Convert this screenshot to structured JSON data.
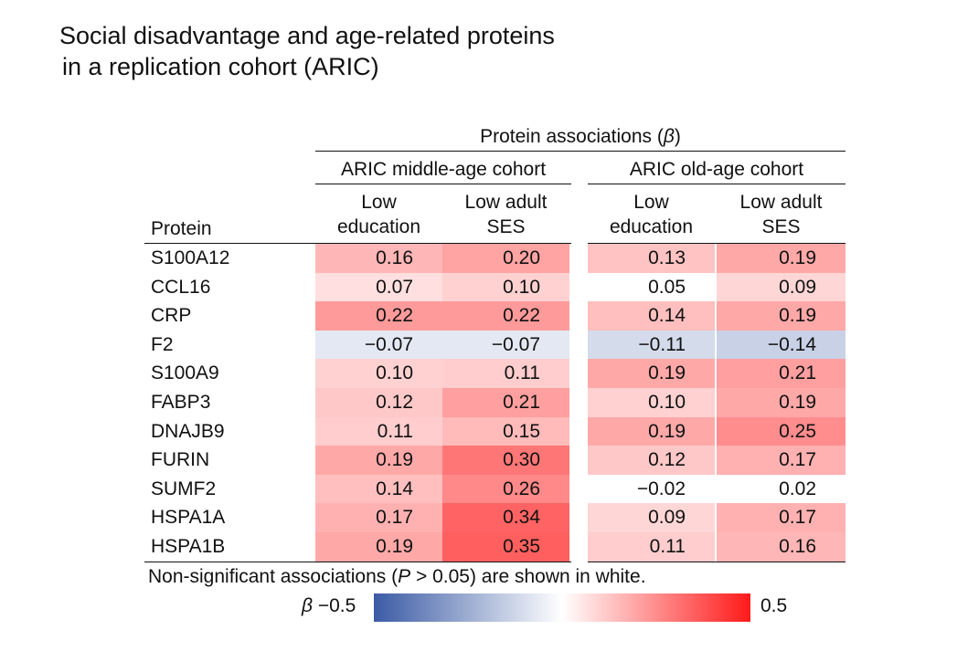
{
  "title": {
    "line1": "Social disadvantage and age-related proteins",
    "line2": "in a replication cohort (ARIC)"
  },
  "header": {
    "top": "Protein associations (",
    "beta_symbol": "β",
    "top_close": ")",
    "cohort_middle": "ARIC middle-age cohort",
    "cohort_old": "ARIC old-age cohort",
    "col_low_education_l1": "Low",
    "col_low_education_l2": "education",
    "col_low_ses_l1": "Low adult",
    "col_low_ses_l2": "SES",
    "protein": "Protein"
  },
  "chart_data": {
    "type": "heatmap",
    "title": "Social disadvantage and age-related proteins in a replication cohort (ARIC)",
    "row_header": "Protein",
    "column_groups": [
      "ARIC middle-age cohort",
      "ARIC old-age cohort"
    ],
    "columns": [
      "Low education",
      "Low adult SES",
      "Low education",
      "Low adult SES"
    ],
    "rows": [
      {
        "protein": "S100A12",
        "values": [
          "0.16",
          "0.20",
          "0.13",
          "0.19"
        ],
        "significant": [
          true,
          true,
          true,
          true
        ]
      },
      {
        "protein": "CCL16",
        "values": [
          "0.07",
          "0.10",
          "0.05",
          "0.09"
        ],
        "significant": [
          true,
          true,
          false,
          true
        ]
      },
      {
        "protein": "CRP",
        "values": [
          "0.22",
          "0.22",
          "0.14",
          "0.19"
        ],
        "significant": [
          true,
          true,
          true,
          true
        ]
      },
      {
        "protein": "F2",
        "values": [
          "−0.07",
          "−0.07",
          "−0.11",
          "−0.14"
        ],
        "significant": [
          true,
          true,
          true,
          true
        ]
      },
      {
        "protein": "S100A9",
        "values": [
          "0.10",
          "0.11",
          "0.19",
          "0.21"
        ],
        "significant": [
          true,
          true,
          true,
          true
        ]
      },
      {
        "protein": "FABP3",
        "values": [
          "0.12",
          "0.21",
          "0.10",
          "0.19"
        ],
        "significant": [
          true,
          true,
          true,
          true
        ]
      },
      {
        "protein": "DNAJB9",
        "values": [
          "0.11",
          "0.15",
          "0.19",
          "0.25"
        ],
        "significant": [
          true,
          true,
          true,
          true
        ]
      },
      {
        "protein": "FURIN",
        "values": [
          "0.19",
          "0.30",
          "0.12",
          "0.17"
        ],
        "significant": [
          true,
          true,
          true,
          true
        ]
      },
      {
        "protein": "SUMF2",
        "values": [
          "0.14",
          "0.26",
          "−0.02",
          "0.02"
        ],
        "significant": [
          true,
          true,
          false,
          false
        ]
      },
      {
        "protein": "HSPA1A",
        "values": [
          "0.17",
          "0.34",
          "0.09",
          "0.17"
        ],
        "significant": [
          true,
          true,
          true,
          true
        ]
      },
      {
        "protein": "HSPA1B",
        "values": [
          "0.19",
          "0.35",
          "0.11",
          "0.16"
        ],
        "significant": [
          true,
          true,
          true,
          true
        ]
      }
    ],
    "colorbar": {
      "min": -0.5,
      "max": 0.5,
      "min_label": "−0.5",
      "max_label": "0.5",
      "symbol": "β",
      "low_color": "#3b5ba5",
      "mid_color": "#ffffff",
      "high_color": "#ff1a1a"
    },
    "note_pre": "Non-significant associations (",
    "note_p": "P",
    "note_post": " > 0.05) are shown in white."
  }
}
